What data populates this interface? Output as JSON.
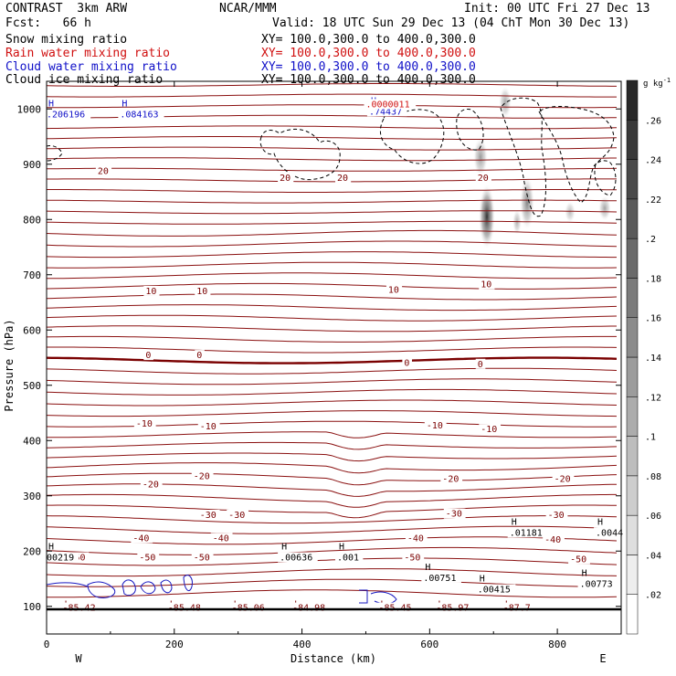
{
  "header": {
    "title": "CONTRAST  3km ARW",
    "center": "NCAR/MMM",
    "init": "Init: 00 UTC Fri 27 Dec 13",
    "fcst": "Fcst:   66 h",
    "valid": "Valid: 18 UTC Sun 29 Dec 13 (04 ChT Mon 30 Dec 13)",
    "fields": [
      {
        "name": "Snow mixing ratio",
        "xy": "XY= 100.0,300.0 to 400.0,300.0",
        "color": "#000000"
      },
      {
        "name": "Rain water mixing ratio",
        "xy": "XY= 100.0,300.0 to 400.0,300.0",
        "color": "#d01010"
      },
      {
        "name": "Cloud water mixing ratio",
        "xy": "XY= 100.0,300.0 to 400.0,300.0",
        "color": "#1010c8"
      },
      {
        "name": "Cloud ice mixing ratio",
        "xy": "XY= 100.0,300.0 to 400.0,300.0",
        "color": "#000000"
      }
    ]
  },
  "chart_data": {
    "type": "contour",
    "xlabel": "Distance (km)",
    "ylabel": "Pressure (hPa)",
    "xlim": [
      0,
      900
    ],
    "ylim": [
      1050,
      50
    ],
    "x_ticks": [
      0,
      200,
      400,
      600,
      800
    ],
    "x_tick_labels": [
      "0",
      "200",
      "400",
      "600",
      "800"
    ],
    "y_ticks": [
      100,
      200,
      300,
      400,
      500,
      600,
      700,
      800,
      900,
      1000
    ],
    "y_tick_labels": [
      "100",
      "200",
      "300",
      "400",
      "500",
      "600",
      "700",
      "800",
      "900",
      "1000"
    ],
    "west_label": "W",
    "east_label": "E",
    "colorbar": {
      "unit": "g kg",
      "unit_exp": "-1",
      "levels": [
        0.02,
        0.04,
        0.06,
        0.08,
        0.1,
        0.12,
        0.14,
        0.16,
        0.18,
        0.2,
        0.22,
        0.24,
        0.26
      ],
      "labels": [
        ".02",
        ".04",
        ".06",
        ".08",
        ".1",
        ".12",
        ".14",
        ".16",
        ".18",
        ".2",
        ".22",
        ".24",
        ".26"
      ]
    },
    "temperature_contour_labels": [
      {
        "x": 35,
        "p": 183,
        "text": "-50"
      },
      {
        "x": 145,
        "p": 183,
        "text": "-50"
      },
      {
        "x": 230,
        "p": 183,
        "text": "-50"
      },
      {
        "x": 560,
        "p": 183,
        "text": "-50"
      },
      {
        "x": 820,
        "p": 180,
        "text": "-50"
      },
      {
        "x": 135,
        "p": 218,
        "text": "-40"
      },
      {
        "x": 260,
        "p": 218,
        "text": "-40"
      },
      {
        "x": 565,
        "p": 218,
        "text": "-40"
      },
      {
        "x": 780,
        "p": 215,
        "text": "-40"
      },
      {
        "x": 240,
        "p": 260,
        "text": "-30"
      },
      {
        "x": 285,
        "p": 260,
        "text": "-30"
      },
      {
        "x": 625,
        "p": 262,
        "text": "-30"
      },
      {
        "x": 785,
        "p": 260,
        "text": "-30"
      },
      {
        "x": 150,
        "p": 315,
        "text": "-20"
      },
      {
        "x": 230,
        "p": 330,
        "text": "-20"
      },
      {
        "x": 620,
        "p": 325,
        "text": "-20"
      },
      {
        "x": 795,
        "p": 325,
        "text": "-20"
      },
      {
        "x": 140,
        "p": 425,
        "text": "-10"
      },
      {
        "x": 240,
        "p": 420,
        "text": "-10"
      },
      {
        "x": 595,
        "p": 422,
        "text": "-10"
      },
      {
        "x": 680,
        "p": 415,
        "text": "-10"
      },
      {
        "x": 155,
        "p": 549,
        "text": "0"
      },
      {
        "x": 235,
        "p": 549,
        "text": "0"
      },
      {
        "x": 560,
        "p": 535,
        "text": "0"
      },
      {
        "x": 675,
        "p": 533,
        "text": "0"
      },
      {
        "x": 155,
        "p": 665,
        "text": "10"
      },
      {
        "x": 235,
        "p": 665,
        "text": "10"
      },
      {
        "x": 535,
        "p": 667,
        "text": "10"
      },
      {
        "x": 680,
        "p": 677,
        "text": "10"
      },
      {
        "x": 80,
        "p": 882,
        "text": "20"
      },
      {
        "x": 365,
        "p": 870,
        "text": "20"
      },
      {
        "x": 455,
        "p": 870,
        "text": "20"
      },
      {
        "x": 675,
        "p": 870,
        "text": "20"
      }
    ],
    "theta_low_labels": [
      {
        "x": 25,
        "p": 92,
        "text": "-85.42"
      },
      {
        "x": 190,
        "p": 92,
        "text": "-85.48"
      },
      {
        "x": 290,
        "p": 92,
        "text": "-85.06"
      },
      {
        "x": 385,
        "p": 92,
        "text": "-84.98"
      },
      {
        "x": 520,
        "p": 92,
        "text": "-85.45"
      },
      {
        "x": 610,
        "p": 92,
        "text": "-85.97"
      },
      {
        "x": 715,
        "p": 92,
        "text": "-87.7"
      }
    ],
    "ice_max_labels": [
      {
        "x": 0,
        "p": 183,
        "text": "00219"
      },
      {
        "x": 365,
        "p": 183,
        "text": ".00636"
      },
      {
        "x": 455,
        "p": 183,
        "text": ".001"
      },
      {
        "x": 590,
        "p": 146,
        "text": ".00751"
      },
      {
        "x": 675,
        "p": 125,
        "text": ".00415"
      },
      {
        "x": 835,
        "p": 135,
        "text": ".00773"
      },
      {
        "x": 725,
        "p": 228,
        "text": ".01181"
      },
      {
        "x": 860,
        "p": 228,
        "text": ".0044"
      }
    ],
    "cloud_water_max_labels": [
      {
        "x": 0,
        "p": 985,
        "text": ".206196"
      },
      {
        "x": 115,
        "p": 985,
        "text": ".084163"
      },
      {
        "x": 505,
        "p": 990,
        "text": ".74437"
      }
    ],
    "rain_max_labels": [
      {
        "x": 500,
        "p": 1003,
        "text": ".0000011"
      }
    ]
  }
}
